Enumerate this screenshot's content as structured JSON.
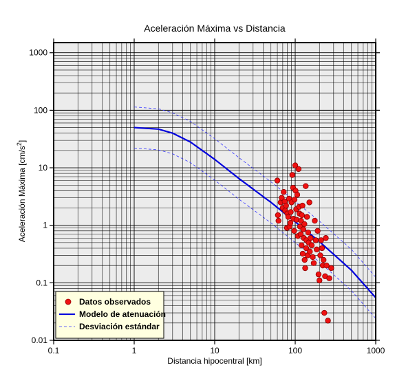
{
  "chart_data": {
    "type": "scatter",
    "title": "Aceleración Máxima vs Distancia",
    "xlabel": "Distancia hipocentral [km]",
    "ylabel": "Aceleración Máxima [cm/s²]",
    "xscale": "log",
    "yscale": "log",
    "xlim": [
      0.1,
      1000
    ],
    "ylim": [
      0.01,
      1500
    ],
    "grid": true,
    "x_ticks": [
      {
        "value": 0.1,
        "label": "0.1"
      },
      {
        "value": 1,
        "label": "1"
      },
      {
        "value": 10,
        "label": "10"
      },
      {
        "value": 100,
        "label": "100"
      },
      {
        "value": 1000,
        "label": "1000"
      }
    ],
    "y_ticks": [
      {
        "value": 0.01,
        "label": "0.01"
      },
      {
        "value": 0.1,
        "label": "0.1"
      },
      {
        "value": 1,
        "label": "1"
      },
      {
        "value": 10,
        "label": "10"
      },
      {
        "value": 100,
        "label": "100"
      },
      {
        "value": 1000,
        "label": "1000"
      }
    ],
    "legend": {
      "position": "bottom-left",
      "entries": [
        {
          "label": "Datos observados",
          "symbol": "dot",
          "color": "#ee1111"
        },
        {
          "label": "Modelo de atenuación",
          "symbol": "line",
          "color": "#0000dd"
        },
        {
          "label": "Desviación estándar",
          "symbol": "dash",
          "color": "#3333ff"
        }
      ]
    },
    "colors": {
      "plot_bg": "#ececec",
      "legend_bg": "#ffffe0",
      "points": "#ee1111",
      "model": "#0000dd",
      "deviation": "#3333ff"
    },
    "series": [
      {
        "kind": "line",
        "legend": "Modelo de atenuación",
        "points": [
          [
            1,
            50
          ],
          [
            2,
            47
          ],
          [
            3,
            40
          ],
          [
            5,
            28
          ],
          [
            10,
            14
          ],
          [
            20,
            6.5
          ],
          [
            50,
            2.5
          ],
          [
            100,
            1.15
          ],
          [
            200,
            0.52
          ],
          [
            500,
            0.165
          ],
          [
            1000,
            0.055
          ]
        ]
      },
      {
        "kind": "dashed",
        "legend": "Desviación estándar",
        "points": [
          [
            1,
            114
          ],
          [
            2,
            106
          ],
          [
            3,
            90
          ],
          [
            5,
            64
          ],
          [
            10,
            32
          ],
          [
            20,
            15
          ],
          [
            50,
            5.7
          ],
          [
            100,
            2.6
          ],
          [
            200,
            1.18
          ],
          [
            500,
            0.38
          ],
          [
            1000,
            0.125
          ]
        ]
      },
      {
        "kind": "dashed",
        "legend": "Desviación estándar",
        "points": [
          [
            1,
            22
          ],
          [
            2,
            20.5
          ],
          [
            3,
            17.5
          ],
          [
            5,
            12.3
          ],
          [
            10,
            6.1
          ],
          [
            20,
            2.85
          ],
          [
            50,
            1.1
          ],
          [
            100,
            0.5
          ],
          [
            200,
            0.23
          ],
          [
            500,
            0.073
          ],
          [
            1000,
            0.024
          ]
        ]
      },
      {
        "kind": "scatter",
        "legend": "Datos observados",
        "points": [
          [
            60,
            6
          ],
          [
            61,
            1.5
          ],
          [
            62,
            1.2
          ],
          [
            66,
            2.5
          ],
          [
            68,
            3
          ],
          [
            70,
            2
          ],
          [
            72,
            3.8
          ],
          [
            74,
            2.6
          ],
          [
            75,
            1.8
          ],
          [
            77,
            2.2
          ],
          [
            79,
            0.9
          ],
          [
            80,
            1.6
          ],
          [
            82,
            1.4
          ],
          [
            84,
            2.9
          ],
          [
            85,
            0.95
          ],
          [
            87,
            1.1
          ],
          [
            88,
            1.7
          ],
          [
            90,
            2.5
          ],
          [
            92,
            7.5
          ],
          [
            94,
            4.5
          ],
          [
            95,
            1.3
          ],
          [
            97,
            0.8
          ],
          [
            98,
            2.8
          ],
          [
            100,
            11
          ],
          [
            101,
            4
          ],
          [
            103,
            1.9
          ],
          [
            104,
            1.25
          ],
          [
            106,
            3.4
          ],
          [
            108,
            0.65
          ],
          [
            110,
            9.5
          ],
          [
            112,
            2.1
          ],
          [
            113,
            1.6
          ],
          [
            115,
            0.95
          ],
          [
            117,
            0.7
          ],
          [
            118,
            1.2
          ],
          [
            120,
            0.45
          ],
          [
            121,
            1.5
          ],
          [
            123,
            2.2
          ],
          [
            124,
            0.32
          ],
          [
            126,
            0.85
          ],
          [
            128,
            0.6
          ],
          [
            130,
            1.05
          ],
          [
            131,
            0.25
          ],
          [
            133,
            0.18
          ],
          [
            135,
            4.8
          ],
          [
            137,
            0.4
          ],
          [
            138,
            0.55
          ],
          [
            140,
            1.4
          ],
          [
            143,
            0.3
          ],
          [
            145,
            0.75
          ],
          [
            147,
            0.5
          ],
          [
            150,
            2.5
          ],
          [
            152,
            0.35
          ],
          [
            155,
            0.6
          ],
          [
            160,
            0.45
          ],
          [
            165,
            0.28
          ],
          [
            170,
            0.22
          ],
          [
            175,
            1.2
          ],
          [
            180,
            0.55
          ],
          [
            185,
            0.38
          ],
          [
            190,
            0.8
          ],
          [
            195,
            0.14
          ],
          [
            200,
            0.11
          ],
          [
            205,
            0.3
          ],
          [
            210,
            0.55
          ],
          [
            215,
            0.4
          ],
          [
            220,
            0.2
          ],
          [
            225,
            0.25
          ],
          [
            230,
            0.03
          ],
          [
            235,
            0.13
          ],
          [
            240,
            0.6
          ],
          [
            245,
            0.2
          ],
          [
            255,
            0.022
          ],
          [
            265,
            0.12
          ],
          [
            280,
            0.18
          ]
        ]
      }
    ]
  }
}
